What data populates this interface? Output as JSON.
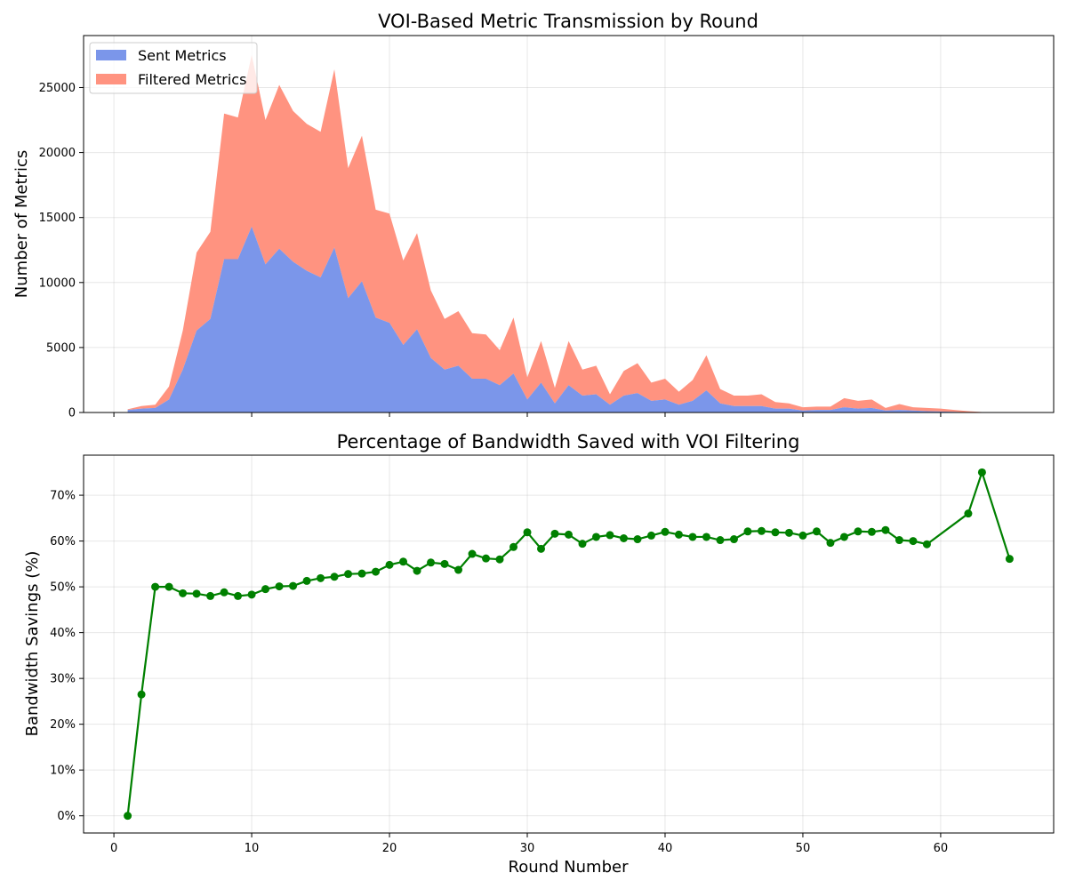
{
  "colors": {
    "sent": "#7b96ea",
    "filtered": "#ff9380",
    "savings": "#008000",
    "grid": "#b0b0b0"
  },
  "chart_data": [
    {
      "type": "area",
      "stacked": true,
      "title": "VOI-Based Metric Transmission by Round",
      "xlabel": "",
      "ylabel": "Number of Metrics",
      "xlim": [
        -2.2,
        68.2
      ],
      "ylim": [
        0,
        29000
      ],
      "xticks": [
        0,
        10,
        20,
        30,
        40,
        50,
        60
      ],
      "yticks": [
        0,
        5000,
        10000,
        15000,
        20000,
        25000
      ],
      "ytick_labels": [
        "0",
        "5000",
        "10000",
        "15000",
        "20000",
        "25000"
      ],
      "grid": true,
      "legend": "upper-left",
      "x": [
        1,
        2,
        3,
        4,
        5,
        6,
        7,
        8,
        9,
        10,
        11,
        12,
        13,
        14,
        15,
        16,
        17,
        18,
        19,
        20,
        21,
        22,
        23,
        24,
        25,
        26,
        27,
        28,
        29,
        30,
        31,
        32,
        33,
        34,
        35,
        36,
        37,
        38,
        39,
        40,
        41,
        42,
        43,
        44,
        45,
        46,
        47,
        48,
        49,
        50,
        51,
        52,
        53,
        54,
        55,
        56,
        57,
        58,
        59,
        60,
        61,
        62,
        63,
        64,
        65
      ],
      "series": [
        {
          "name": "Sent Metrics",
          "values": [
            200,
            300,
            350,
            1000,
            3300,
            6300,
            7200,
            11800,
            11800,
            14300,
            11400,
            12600,
            11600,
            10900,
            10400,
            12700,
            8800,
            10100,
            7300,
            6900,
            5200,
            6400,
            4200,
            3300,
            3600,
            2600,
            2600,
            2100,
            3000,
            1000,
            2300,
            700,
            2100,
            1300,
            1400,
            600,
            1300,
            1500,
            900,
            1000,
            600,
            900,
            1700,
            700,
            500,
            500,
            500,
            300,
            300,
            150,
            200,
            200,
            400,
            300,
            350,
            150,
            200,
            150,
            100,
            80,
            50,
            20,
            8,
            5,
            3
          ]
        },
        {
          "name": "Filtered Metrics",
          "values": [
            50,
            200,
            250,
            1000,
            3000,
            6000,
            6700,
            11200,
            10900,
            13200,
            11100,
            12600,
            11600,
            11300,
            11200,
            13700,
            10000,
            11200,
            8300,
            8400,
            6500,
            7400,
            5200,
            3900,
            4200,
            3500,
            3400,
            2700,
            4300,
            1700,
            3200,
            1200,
            3400,
            2000,
            2200,
            800,
            1900,
            2300,
            1400,
            1600,
            1000,
            1600,
            2700,
            1100,
            800,
            800,
            900,
            500,
            400,
            250,
            250,
            250,
            700,
            600,
            650,
            200,
            450,
            250,
            250,
            220,
            150,
            80,
            25,
            15,
            4
          ]
        }
      ]
    },
    {
      "type": "line",
      "title": "Percentage of Bandwidth Saved with VOI Filtering",
      "xlabel": "Round Number",
      "ylabel": "Bandwidth Savings (%)",
      "xlim": [
        -2.2,
        68.2
      ],
      "ylim": [
        -3.75,
        78.75
      ],
      "xticks": [
        0,
        10,
        20,
        30,
        40,
        50,
        60
      ],
      "xtick_labels": [
        "0",
        "10",
        "20",
        "30",
        "40",
        "50",
        "60"
      ],
      "yticks": [
        0,
        10,
        20,
        30,
        40,
        50,
        60,
        70
      ],
      "ytick_labels": [
        "0%",
        "10%",
        "20%",
        "30%",
        "40%",
        "50%",
        "60%",
        "70%"
      ],
      "grid": true,
      "marker": "circle",
      "series": [
        {
          "name": "",
          "x": [
            1,
            2,
            3,
            4,
            5,
            6,
            7,
            8,
            9,
            10,
            11,
            12,
            13,
            14,
            15,
            16,
            17,
            18,
            19,
            20,
            21,
            22,
            23,
            24,
            25,
            26,
            27,
            28,
            29,
            30,
            31,
            32,
            33,
            34,
            35,
            36,
            37,
            38,
            39,
            40,
            41,
            42,
            43,
            44,
            45,
            46,
            47,
            48,
            49,
            50,
            51,
            52,
            53,
            54,
            55,
            56,
            57,
            58,
            59,
            62,
            63,
            65
          ],
          "values": [
            0,
            26.5,
            50,
            50,
            48.6,
            48.5,
            48,
            48.8,
            48,
            48.3,
            49.5,
            50.1,
            50.2,
            51.3,
            51.9,
            52.2,
            52.8,
            52.9,
            53.3,
            54.8,
            55.5,
            53.5,
            55.3,
            55,
            53.7,
            57.2,
            56.2,
            56,
            58.7,
            61.9,
            58.3,
            61.6,
            61.4,
            59.4,
            60.9,
            61.3,
            60.6,
            60.4,
            61.2,
            62,
            61.4,
            60.9,
            60.9,
            60.2,
            60.4,
            62.1,
            62.2,
            61.9,
            61.8,
            61.2,
            62.1,
            59.6,
            60.9,
            62.1,
            62,
            62.4,
            60.2,
            60,
            59.3,
            66,
            75,
            56.1
          ]
        }
      ]
    }
  ]
}
